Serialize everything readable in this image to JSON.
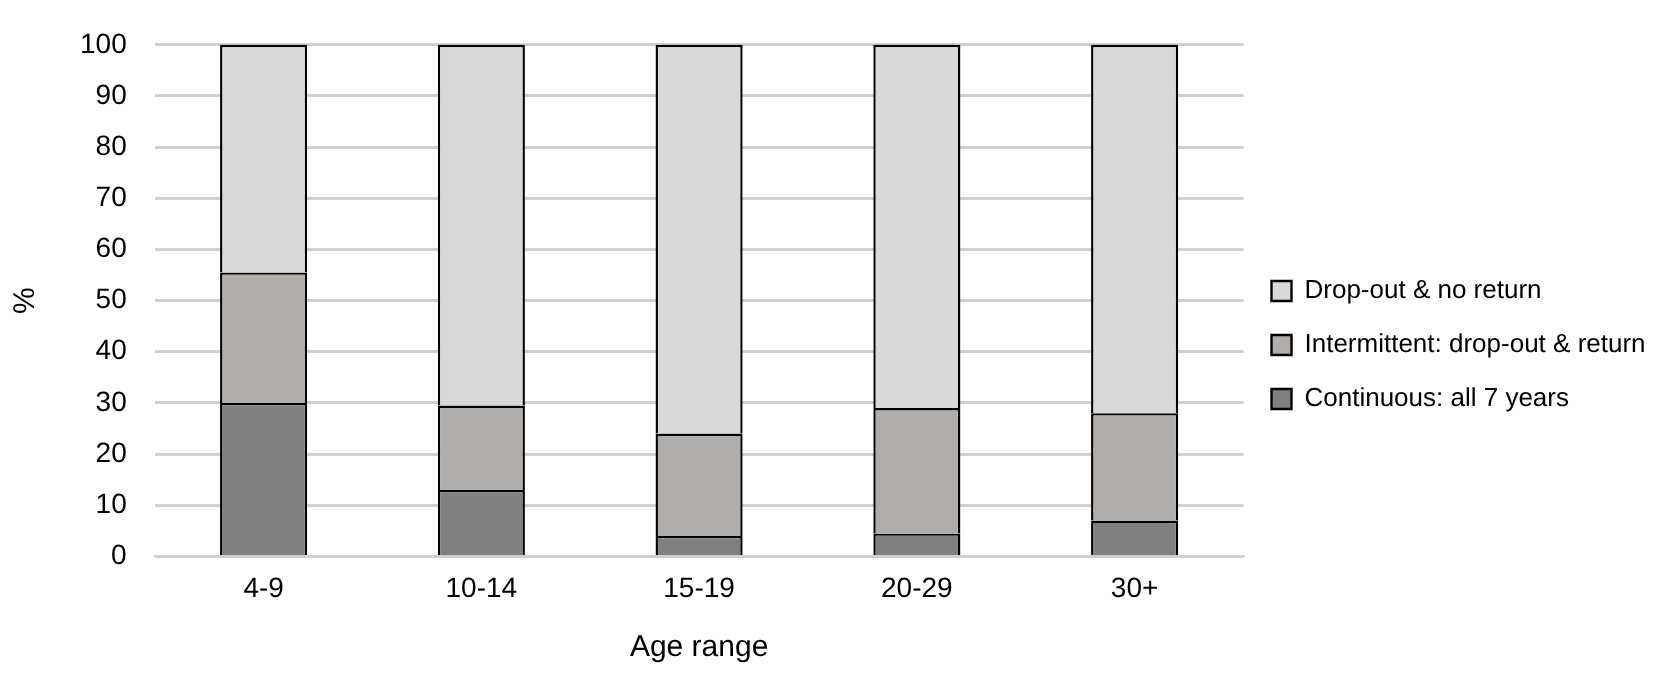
{
  "chart_data": {
    "type": "bar",
    "stacked": true,
    "xlabel": "Age range",
    "ylabel": "%",
    "categories": [
      "4-9",
      "10-14",
      "15-19",
      "20-29",
      "30+"
    ],
    "series": [
      {
        "name": "Continuous: all 7 years",
        "color": "#808080",
        "values": [
          30,
          13,
          4,
          4.5,
          7
        ]
      },
      {
        "name": "Intermittent: drop-out & return",
        "color": "#b0adab",
        "values": [
          25.5,
          16.5,
          20,
          24.5,
          21
        ]
      },
      {
        "name": "Drop-out & no return",
        "color": "#d9d9d9",
        "values": [
          44.5,
          70.5,
          76,
          71,
          72
        ]
      }
    ],
    "ylim": [
      0,
      100
    ],
    "yticks": [
      0,
      10,
      20,
      30,
      40,
      50,
      60,
      70,
      80,
      90,
      100
    ],
    "grid": "y",
    "legend": "right"
  }
}
